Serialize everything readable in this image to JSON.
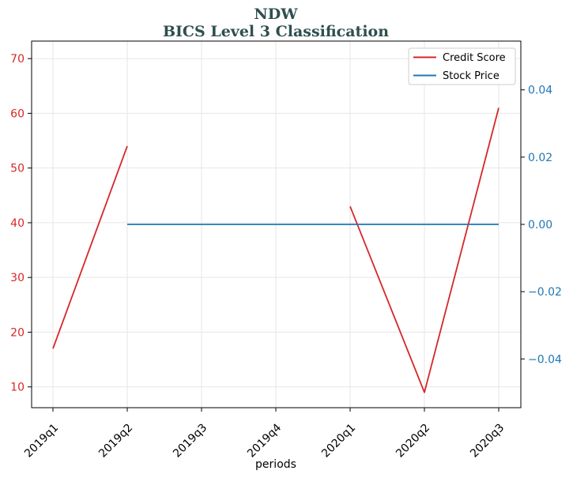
{
  "chart_data": {
    "type": "line",
    "title": "NDW",
    "subtitle": "BICS Level 3 Classification",
    "xlabel": "periods",
    "categories": [
      "2019q1",
      "2019q2",
      "2019q3",
      "2019q4",
      "2020q1",
      "2020q2",
      "2020q3"
    ],
    "y_left": {
      "range": [
        6.2,
        73.2
      ],
      "ticks": [
        10,
        20,
        30,
        40,
        50,
        60,
        70
      ],
      "color": "#d62728"
    },
    "y_right": {
      "range": [
        -0.0545,
        0.0545
      ],
      "ticks": [
        -0.04,
        -0.02,
        0.0,
        0.02,
        0.04
      ],
      "tick_labels": [
        "−0.04",
        "−0.02",
        "0.00",
        "0.02",
        "0.04"
      ],
      "color": "#1f77b4"
    },
    "series": [
      {
        "name": "Credit Score",
        "axis": "left",
        "color": "#d62728",
        "values": [
          17,
          54,
          null,
          null,
          43,
          9,
          61
        ]
      },
      {
        "name": "Stock Price",
        "axis": "right",
        "color": "#1f77b4",
        "values": [
          null,
          0.0,
          0.0,
          0.0,
          0.0,
          0.0,
          0.0
        ]
      }
    ],
    "grid": true,
    "legend_position": "top-right"
  }
}
